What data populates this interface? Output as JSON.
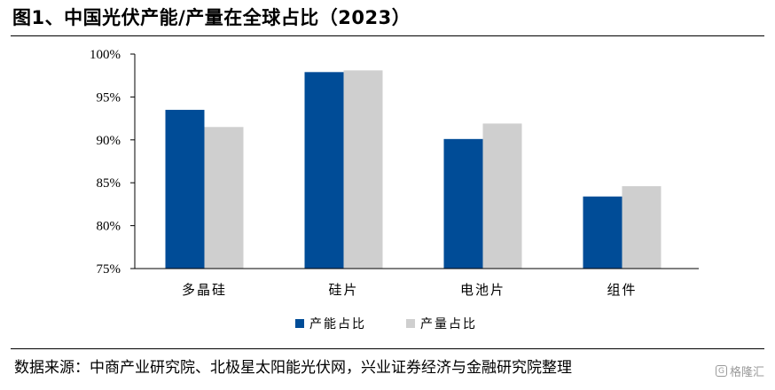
{
  "header": {
    "title": "图1、中国光伏产能/产量在全球占比（2023）"
  },
  "footer": {
    "source": "数据来源：中商产业研究院、北极星太阳能光伏网，兴业证券经济与金融研究院整理",
    "watermark_text": "格隆汇"
  },
  "colors": {
    "capacity": "#004C97",
    "output": "#CFCFCF",
    "axis": "#000000"
  },
  "chart_data": {
    "type": "bar",
    "title": "",
    "xlabel": "",
    "ylabel": "",
    "categories": [
      "多晶硅",
      "硅片",
      "电池片",
      "组件"
    ],
    "series": [
      {
        "name": "产能占比",
        "values": [
          93.5,
          97.9,
          90.1,
          83.4
        ]
      },
      {
        "name": "产量占比",
        "values": [
          91.5,
          98.1,
          91.9,
          84.6
        ]
      }
    ],
    "ylim": [
      75,
      100
    ],
    "yticks": [
      "75%",
      "80%",
      "85%",
      "90%",
      "95%",
      "100%"
    ],
    "ytick_values": [
      75,
      80,
      85,
      90,
      95,
      100
    ],
    "grid": false,
    "legend_position": "bottom-center"
  }
}
